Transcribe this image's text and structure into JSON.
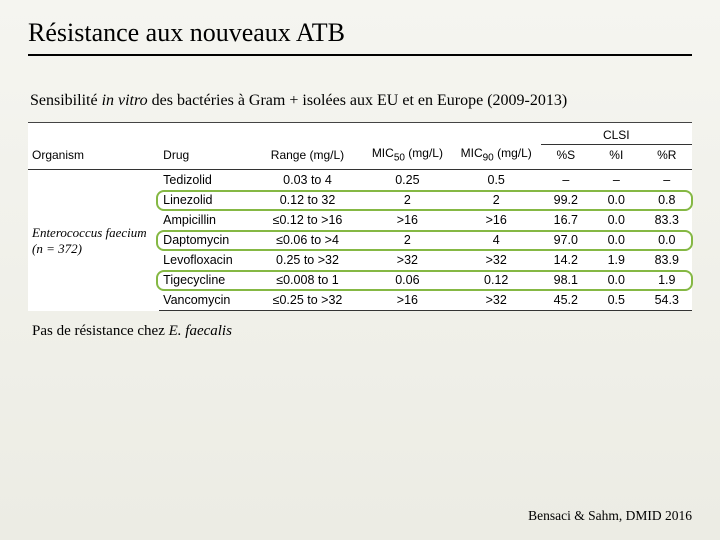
{
  "title": "Résistance aux nouveaux ATB",
  "subtitle_pre": "Sensibilité ",
  "subtitle_em": "in vitro",
  "subtitle_post": " des bactéries à Gram + isolées aux EU et en Europe (2009-2013)",
  "footnote_pre": "Pas de résistance chez ",
  "footnote_em": "E. faecalis",
  "citation": "Bensaci & Sahm, DMID 2016",
  "table": {
    "clsi_label": "CLSI",
    "headers": {
      "organism": "Organism",
      "drug": "Drug",
      "range": "Range (mg/L)",
      "mic50_html": "MIC<sub>50</sub> (mg/L)",
      "mic90_html": "MIC<sub>90</sub> (mg/L)",
      "s": "%S",
      "i": "%I",
      "r": "%R"
    },
    "organism_html": "<i>Enterococcus faecium</i> (n = 372)",
    "rows": [
      {
        "drug": "Tedizolid",
        "range": "0.03 to 4",
        "mic50": "0.25",
        "mic90": "0.5",
        "s": "–",
        "i": "–",
        "r": "–",
        "highlight": false
      },
      {
        "drug": "Linezolid",
        "range": "0.12 to 32",
        "mic50": "2",
        "mic90": "2",
        "s": "99.2",
        "i": "0.0",
        "r": "0.8",
        "highlight": true
      },
      {
        "drug": "Ampicillin",
        "range": "≤0.12 to >16",
        "mic50": ">16",
        "mic90": ">16",
        "s": "16.7",
        "i": "0.0",
        "r": "83.3",
        "highlight": false
      },
      {
        "drug": "Daptomycin",
        "range": "≤0.06 to >4",
        "mic50": "2",
        "mic90": "4",
        "s": "97.0",
        "i": "0.0",
        "r": "0.0",
        "highlight": true
      },
      {
        "drug": "Levofloxacin",
        "range": "0.25 to >32",
        "mic50": ">32",
        "mic90": ">32",
        "s": "14.2",
        "i": "1.9",
        "r": "83.9",
        "highlight": false
      },
      {
        "drug": "Tigecycline",
        "range": "≤0.008 to 1",
        "mic50": "0.06",
        "mic90": "0.12",
        "s": "98.1",
        "i": "0.0",
        "r": "1.9",
        "highlight": true
      },
      {
        "drug": "Vancomycin",
        "range": "≤0.25 to >32",
        "mic50": ">16",
        "mic90": ">32",
        "s": "45.2",
        "i": "0.5",
        "r": "54.3",
        "highlight": false
      }
    ],
    "highlight_color": "#85b844",
    "background_color": "#ffffff",
    "border_color": "#333333"
  }
}
